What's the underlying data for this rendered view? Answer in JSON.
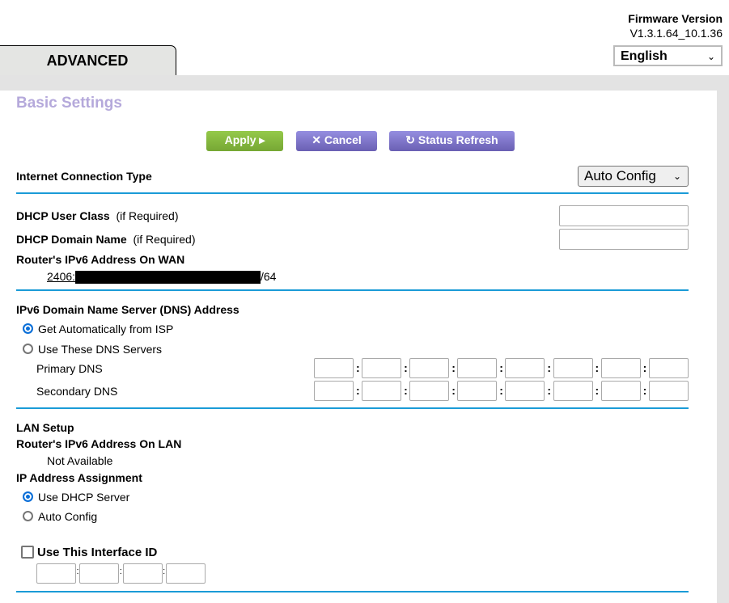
{
  "header": {
    "firmware_label": "Firmware Version",
    "firmware_version": "V1.3.1.64_10.1.36",
    "language": "English",
    "tab": "ADVANCED"
  },
  "page": {
    "title": "Basic Settings",
    "title_color": "#b5a9db"
  },
  "toolbar": {
    "apply": "Apply ▸",
    "cancel": "Cancel",
    "refresh": "Status Refresh"
  },
  "connection": {
    "label": "Internet Connection Type",
    "value": "Auto Config"
  },
  "dhcp": {
    "user_class_label": "DHCP User Class",
    "user_class_hint": "(if Required)",
    "user_class_value": "",
    "domain_label": "DHCP Domain Name",
    "domain_hint": "(if Required)",
    "domain_value": "",
    "wan_label": "Router's IPv6 Address On WAN",
    "wan_prefix": "2406:",
    "wan_suffix": "/64"
  },
  "dns": {
    "title": "IPv6 Domain Name Server (DNS) Address",
    "auto": "Get Automatically from ISP",
    "manual": "Use These DNS Servers",
    "selected": "auto",
    "primary": "Primary DNS",
    "secondary": "Secondary DNS"
  },
  "lan": {
    "title": "LAN Setup",
    "lan_label": "Router's IPv6 Address On LAN",
    "lan_value": "Not Available",
    "assign_label": "IP Address Assignment",
    "dhcp_server": "Use DHCP Server",
    "auto_config": "Auto Config",
    "selected": "dhcp_server",
    "interface_id": "Use This Interface ID",
    "interface_checked": false
  },
  "colors": {
    "accent_line": "#1a9bd7",
    "apply": "#86b83f",
    "secondary_buttons": "#7d73c9"
  }
}
